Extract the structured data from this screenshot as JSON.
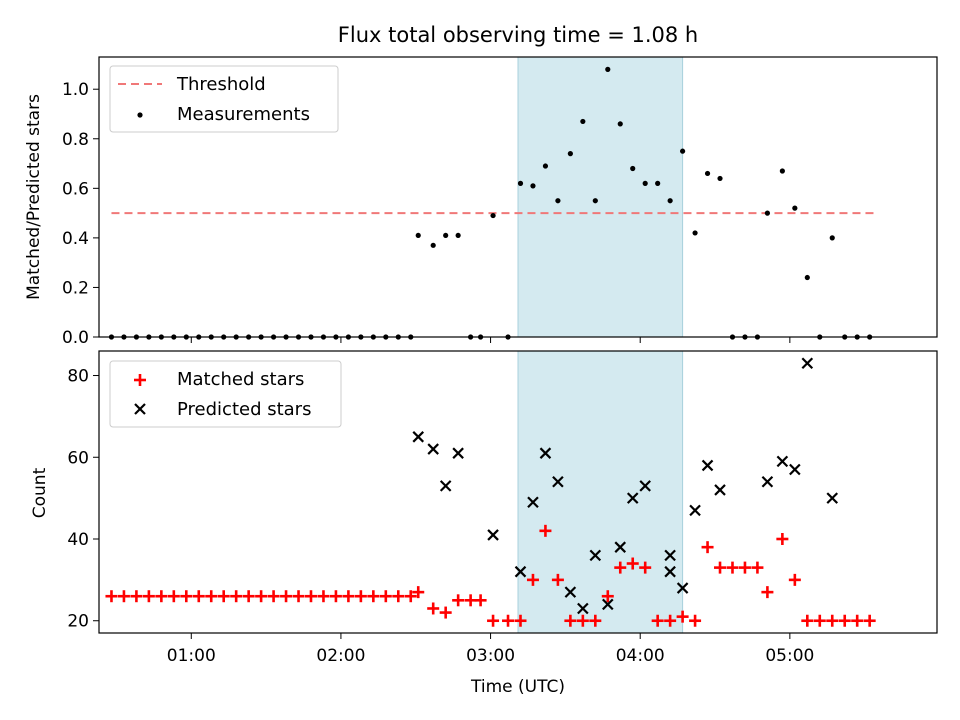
{
  "chart_data": [
    {
      "type": "scatter",
      "title": "Flux total observing time = 1.08 h",
      "xlabel": "",
      "ylabel": "Matched/Predicted stars",
      "xlim": [
        "00:23",
        "05:59"
      ],
      "ylim": [
        0,
        1.13
      ],
      "yticks": [
        "0.0",
        "0.2",
        "0.4",
        "0.6",
        "0.8",
        "1.0"
      ],
      "highlight_span": {
        "x": [
          "03:11",
          "04:17"
        ],
        "color": "#d4eaf0"
      },
      "legend": {
        "placement": "top-left",
        "entries": [
          "Threshold",
          "Measurements"
        ]
      },
      "grid": false,
      "threshold": {
        "name": "Threshold",
        "value": 0.5,
        "x": [
          "00:28",
          "05:34"
        ],
        "color": "#f07878"
      },
      "series": [
        {
          "name": "Measurements",
          "color": "#000000",
          "points": [
            [
              "00:28",
              0
            ],
            [
              "00:33",
              0
            ],
            [
              "00:38",
              0
            ],
            [
              "00:43",
              0
            ],
            [
              "00:48",
              0
            ],
            [
              "00:53",
              0
            ],
            [
              "00:58",
              0
            ],
            [
              "01:03",
              0
            ],
            [
              "01:08",
              0
            ],
            [
              "01:13",
              0
            ],
            [
              "01:18",
              0
            ],
            [
              "01:23",
              0
            ],
            [
              "01:28",
              0
            ],
            [
              "01:33",
              0
            ],
            [
              "01:38",
              0
            ],
            [
              "01:43",
              0
            ],
            [
              "01:48",
              0
            ],
            [
              "01:53",
              0
            ],
            [
              "01:58",
              0
            ],
            [
              "02:03",
              0
            ],
            [
              "02:08",
              0
            ],
            [
              "02:13",
              0
            ],
            [
              "02:18",
              0
            ],
            [
              "02:23",
              0
            ],
            [
              "02:28",
              0
            ],
            [
              "02:31",
              0.41
            ],
            [
              "02:37",
              0.37
            ],
            [
              "02:42",
              0.41
            ],
            [
              "02:47",
              0.41
            ],
            [
              "02:52",
              0
            ],
            [
              "02:56",
              0
            ],
            [
              "03:01",
              0.49
            ],
            [
              "03:07",
              0
            ],
            [
              "03:12",
              0.62
            ],
            [
              "03:17",
              0.61
            ],
            [
              "03:22",
              0.69
            ],
            [
              "03:27",
              0.55
            ],
            [
              "03:32",
              0.74
            ],
            [
              "03:37",
              0.87
            ],
            [
              "03:42",
              0.55
            ],
            [
              "03:47",
              1.08
            ],
            [
              "03:52",
              0.86
            ],
            [
              "03:57",
              0.68
            ],
            [
              "04:02",
              0.62
            ],
            [
              "04:07",
              0.62
            ],
            [
              "04:12",
              0.55
            ],
            [
              "04:17",
              0.75
            ],
            [
              "04:22",
              0.42
            ],
            [
              "04:27",
              0.66
            ],
            [
              "04:32",
              0.64
            ],
            [
              "04:37",
              0
            ],
            [
              "04:42",
              0
            ],
            [
              "04:47",
              0
            ],
            [
              "04:51",
              0.5
            ],
            [
              "04:57",
              0.67
            ],
            [
              "05:02",
              0.52
            ],
            [
              "05:07",
              0.24
            ],
            [
              "05:12",
              0
            ],
            [
              "05:17",
              0.4
            ],
            [
              "05:22",
              0
            ],
            [
              "05:27",
              0
            ],
            [
              "05:32",
              0
            ]
          ]
        }
      ]
    },
    {
      "type": "scatter",
      "title": "",
      "xlabel": "Time (UTC)",
      "ylabel": "Count",
      "xlim": [
        "00:23",
        "05:59"
      ],
      "ylim": [
        17,
        86
      ],
      "yticks": [
        "20",
        "40",
        "60",
        "80"
      ],
      "xticks": [
        "01:00",
        "02:00",
        "03:00",
        "04:00",
        "05:00"
      ],
      "highlight_span": {
        "x": [
          "03:11",
          "04:17"
        ],
        "color": "#d4eaf0"
      },
      "legend": {
        "placement": "top-left",
        "entries": [
          "Matched stars",
          "Predicted stars"
        ]
      },
      "grid": false,
      "series": [
        {
          "name": "Matched stars",
          "color": "#ff0000",
          "marker": "plus",
          "points": [
            [
              "00:28",
              26
            ],
            [
              "00:33",
              26
            ],
            [
              "00:38",
              26
            ],
            [
              "00:43",
              26
            ],
            [
              "00:48",
              26
            ],
            [
              "00:53",
              26
            ],
            [
              "00:58",
              26
            ],
            [
              "01:03",
              26
            ],
            [
              "01:08",
              26
            ],
            [
              "01:13",
              26
            ],
            [
              "01:18",
              26
            ],
            [
              "01:23",
              26
            ],
            [
              "01:28",
              26
            ],
            [
              "01:33",
              26
            ],
            [
              "01:38",
              26
            ],
            [
              "01:43",
              26
            ],
            [
              "01:48",
              26
            ],
            [
              "01:53",
              26
            ],
            [
              "01:58",
              26
            ],
            [
              "02:03",
              26
            ],
            [
              "02:08",
              26
            ],
            [
              "02:13",
              26
            ],
            [
              "02:18",
              26
            ],
            [
              "02:23",
              26
            ],
            [
              "02:28",
              26
            ],
            [
              "02:31",
              27
            ],
            [
              "02:37",
              23
            ],
            [
              "02:42",
              22
            ],
            [
              "02:47",
              25
            ],
            [
              "02:52",
              25
            ],
            [
              "02:56",
              25
            ],
            [
              "03:01",
              20
            ],
            [
              "03:07",
              20
            ],
            [
              "03:12",
              20
            ],
            [
              "03:17",
              30
            ],
            [
              "03:22",
              42
            ],
            [
              "03:27",
              30
            ],
            [
              "03:32",
              20
            ],
            [
              "03:37",
              20
            ],
            [
              "03:42",
              20
            ],
            [
              "03:47",
              26
            ],
            [
              "03:52",
              33
            ],
            [
              "03:57",
              34
            ],
            [
              "04:02",
              33
            ],
            [
              "04:07",
              20
            ],
            [
              "04:12",
              20
            ],
            [
              "04:17",
              21
            ],
            [
              "04:22",
              20
            ],
            [
              "04:27",
              38
            ],
            [
              "04:32",
              33
            ],
            [
              "04:37",
              33
            ],
            [
              "04:42",
              33
            ],
            [
              "04:47",
              33
            ],
            [
              "04:51",
              27
            ],
            [
              "04:57",
              40
            ],
            [
              "05:02",
              30
            ],
            [
              "05:07",
              20
            ],
            [
              "05:12",
              20
            ],
            [
              "05:17",
              20
            ],
            [
              "05:22",
              20
            ],
            [
              "05:27",
              20
            ],
            [
              "05:32",
              20
            ]
          ]
        },
        {
          "name": "Predicted stars",
          "color": "#000000",
          "marker": "x",
          "points": [
            [
              "02:31",
              65
            ],
            [
              "02:37",
              62
            ],
            [
              "02:42",
              53
            ],
            [
              "02:47",
              61
            ],
            [
              "03:01",
              41
            ],
            [
              "03:12",
              32
            ],
            [
              "03:17",
              49
            ],
            [
              "03:22",
              61
            ],
            [
              "03:27",
              54
            ],
            [
              "03:32",
              27
            ],
            [
              "03:37",
              23
            ],
            [
              "03:42",
              36
            ],
            [
              "03:47",
              24
            ],
            [
              "03:52",
              38
            ],
            [
              "03:57",
              50
            ],
            [
              "04:02",
              53
            ],
            [
              "04:12",
              32
            ],
            [
              "04:12",
              36
            ],
            [
              "04:17",
              28
            ],
            [
              "04:22",
              47
            ],
            [
              "04:27",
              58
            ],
            [
              "04:32",
              52
            ],
            [
              "04:51",
              54
            ],
            [
              "04:57",
              59
            ],
            [
              "05:02",
              57
            ],
            [
              "05:07",
              83
            ],
            [
              "05:17",
              50
            ]
          ]
        }
      ]
    }
  ]
}
